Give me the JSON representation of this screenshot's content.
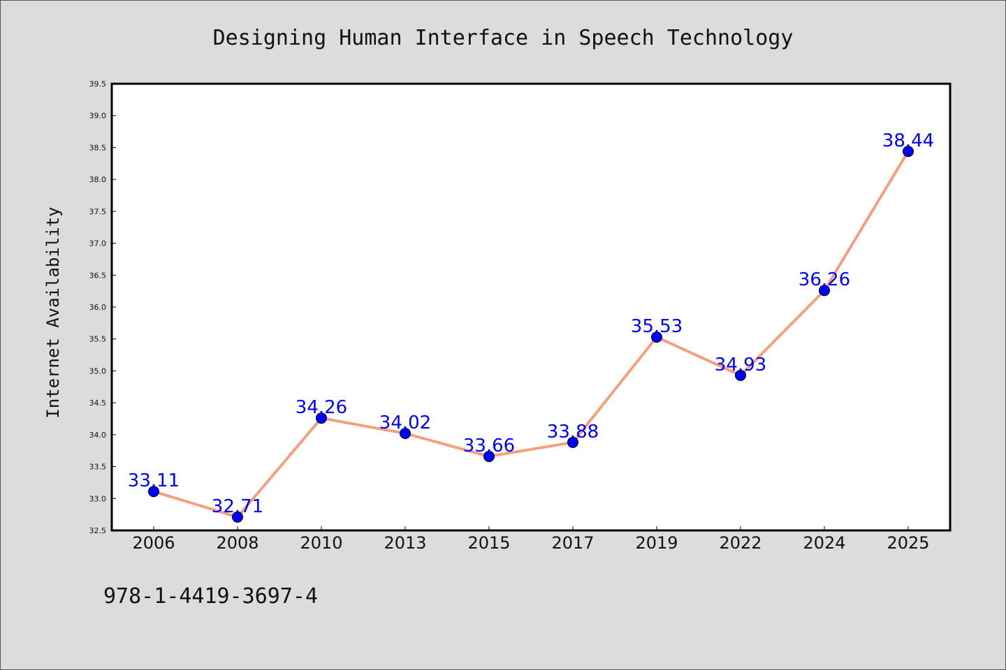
{
  "chart_data": {
    "type": "line",
    "title": "Designing Human Interface in Speech Technology",
    "xlabel": "",
    "ylabel": "Internet Availability",
    "categories": [
      "2006",
      "2008",
      "2010",
      "2013",
      "2015",
      "2017",
      "2019",
      "2022",
      "2024",
      "2025"
    ],
    "values": [
      33.11,
      32.71,
      34.26,
      34.02,
      33.66,
      33.88,
      35.53,
      34.93,
      36.26,
      38.44
    ],
    "data_labels": [
      "33.11",
      "32.71",
      "34.26",
      "34.02",
      "33.66",
      "33.88",
      "35.53",
      "34.93",
      "36.26",
      "38.44"
    ],
    "ylim": [
      32.5,
      39.5
    ],
    "yticks": [
      "32.5",
      "33.0",
      "33.5",
      "34.0",
      "34.5",
      "35.0",
      "35.5",
      "36.0",
      "36.5",
      "37.0",
      "37.5",
      "38.0",
      "38.5",
      "39.0",
      "39.5"
    ],
    "grid": false,
    "line_color": "#f4a07e",
    "marker_color": "#0000ff",
    "label_color": "#0000ff"
  },
  "footer": {
    "isbn": "978-1-4419-3697-4"
  }
}
